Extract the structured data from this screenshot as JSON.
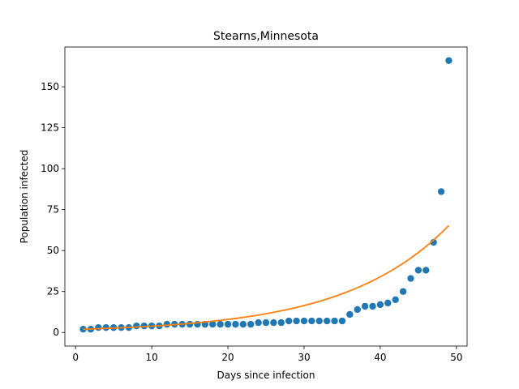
{
  "chart_data": {
    "type": "scatter",
    "title": "Stearns,Minnesota",
    "xlabel": "Days since infection",
    "ylabel": "Population infected",
    "xlim": [
      -1.4,
      51.4
    ],
    "ylim": [
      -8.3,
      174.3
    ],
    "xticks": [
      0,
      10,
      20,
      30,
      40,
      50
    ],
    "yticks": [
      0,
      25,
      50,
      75,
      100,
      125,
      150
    ],
    "grid": false,
    "series": [
      {
        "kind": "scatter",
        "color": "#1f77b4",
        "x": [
          1,
          2,
          3,
          4,
          5,
          6,
          7,
          8,
          9,
          10,
          11,
          12,
          13,
          14,
          15,
          16,
          17,
          18,
          19,
          20,
          21,
          22,
          23,
          24,
          25,
          26,
          27,
          28,
          29,
          30,
          31,
          32,
          33,
          34,
          35,
          36,
          37,
          38,
          39,
          40,
          41,
          42,
          43,
          44,
          45,
          46,
          47,
          48,
          49
        ],
        "y": [
          2,
          2,
          3,
          3,
          3,
          3,
          3,
          4,
          4,
          4,
          4,
          5,
          5,
          5,
          5,
          5,
          5,
          5,
          5,
          5,
          5,
          5,
          5,
          6,
          6,
          6,
          6,
          7,
          7,
          7,
          7,
          7,
          7,
          7,
          7,
          11,
          14,
          16,
          16,
          17,
          18,
          20,
          25,
          33,
          38,
          38,
          55,
          86,
          166
        ]
      },
      {
        "kind": "line",
        "color": "#ff7f0e",
        "x": [
          1,
          2,
          3,
          4,
          5,
          6,
          7,
          8,
          9,
          10,
          11,
          12,
          13,
          14,
          15,
          16,
          17,
          18,
          19,
          20,
          21,
          22,
          23,
          24,
          25,
          26,
          27,
          28,
          29,
          30,
          31,
          32,
          33,
          34,
          35,
          36,
          37,
          38,
          39,
          40,
          41,
          42,
          43,
          44,
          45,
          46,
          47,
          48,
          49
        ],
        "y": [
          2.0,
          2.15,
          2.31,
          2.49,
          2.68,
          2.88,
          3.09,
          3.33,
          3.58,
          3.85,
          4.14,
          4.45,
          4.78,
          5.14,
          5.53,
          5.95,
          6.39,
          6.88,
          7.39,
          7.95,
          8.55,
          9.19,
          9.88,
          10.63,
          11.43,
          12.29,
          13.21,
          14.2,
          15.28,
          16.43,
          17.66,
          18.99,
          20.42,
          21.96,
          23.61,
          25.39,
          27.3,
          29.36,
          31.57,
          33.94,
          36.5,
          39.25,
          42.2,
          45.38,
          48.8,
          52.48,
          56.43,
          60.68,
          65.25
        ]
      }
    ]
  }
}
